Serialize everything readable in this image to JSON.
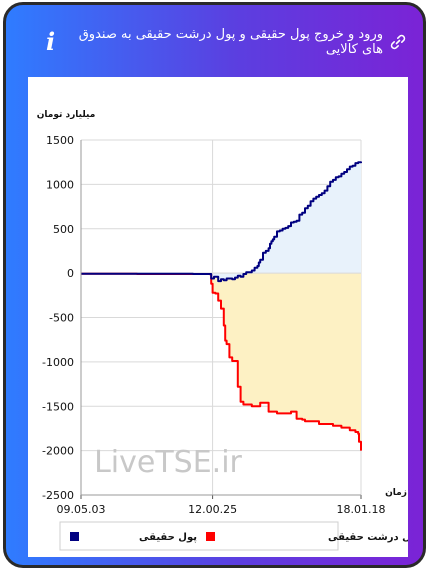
{
  "header": {
    "title": "ورود و خروج پول حقیقی و پول درشت حقیقی به صندوق های کالایی",
    "info_icon": "i"
  },
  "watermark": "LiveTSE.ir",
  "chart_data": {
    "type": "area",
    "ylabel": "میلیارد تومان",
    "xlabel": "زمان",
    "ylim": [
      -2500,
      1500
    ],
    "yticks": [
      1500,
      1000,
      500,
      0,
      -500,
      -1000,
      -1500,
      -2000,
      -2500
    ],
    "x_range": [
      0,
      100
    ],
    "xticks": [
      {
        "label": "09.05.03",
        "x": 0
      },
      {
        "label": "12.00.25",
        "x": 47
      },
      {
        "label": "18.01.18",
        "x": 100
      }
    ],
    "grid": true,
    "legend_position": "bottom",
    "colors": {
      "real_money": "#000080",
      "real_money_fill": "#e8f2fb",
      "big_real_money": "#ff0000",
      "big_real_money_fill": "#fdf1c4"
    },
    "series": [
      {
        "name": "پول حقیقی",
        "points": [
          [
            0,
            -8
          ],
          [
            20,
            -8
          ],
          [
            40,
            -10
          ],
          [
            46,
            -10
          ],
          [
            46.5,
            -60
          ],
          [
            47.5,
            -40
          ],
          [
            49,
            -90
          ],
          [
            50,
            -70
          ],
          [
            51,
            -80
          ],
          [
            52,
            -60
          ],
          [
            54,
            -70
          ],
          [
            55,
            -50
          ],
          [
            56,
            -30
          ],
          [
            57,
            -40
          ],
          [
            58,
            -10
          ],
          [
            59,
            10
          ],
          [
            61,
            30
          ],
          [
            62,
            60
          ],
          [
            63,
            80
          ],
          [
            63.5,
            120
          ],
          [
            64,
            150
          ],
          [
            65,
            230
          ],
          [
            66,
            250
          ],
          [
            67,
            280
          ],
          [
            67.5,
            330
          ],
          [
            68,
            360
          ],
          [
            68.5,
            380
          ],
          [
            69,
            410
          ],
          [
            70,
            470
          ],
          [
            71,
            480
          ],
          [
            72,
            500
          ],
          [
            73,
            510
          ],
          [
            74,
            530
          ],
          [
            75,
            570
          ],
          [
            76,
            580
          ],
          [
            77,
            590
          ],
          [
            78,
            660
          ],
          [
            79,
            680
          ],
          [
            80,
            730
          ],
          [
            81,
            760
          ],
          [
            82,
            810
          ],
          [
            83,
            840
          ],
          [
            84,
            860
          ],
          [
            85,
            880
          ],
          [
            86,
            900
          ],
          [
            87,
            930
          ],
          [
            88,
            980
          ],
          [
            89,
            1030
          ],
          [
            90,
            1050
          ],
          [
            91,
            1080
          ],
          [
            92,
            1090
          ],
          [
            93,
            1120
          ],
          [
            94,
            1140
          ],
          [
            95,
            1170
          ],
          [
            96,
            1200
          ],
          [
            97,
            1210
          ],
          [
            98,
            1240
          ],
          [
            99,
            1250
          ],
          [
            100,
            1240
          ]
        ]
      },
      {
        "name": "پول درشت حقیقی",
        "points": [
          [
            0,
            -8
          ],
          [
            20,
            -10
          ],
          [
            46,
            -12
          ],
          [
            46.5,
            -120
          ],
          [
            47,
            -220
          ],
          [
            48,
            -230
          ],
          [
            49,
            -310
          ],
          [
            50,
            -400
          ],
          [
            51,
            -590
          ],
          [
            51.5,
            -760
          ],
          [
            52,
            -800
          ],
          [
            53,
            -950
          ],
          [
            54,
            -990
          ],
          [
            55,
            -990
          ],
          [
            56,
            -1280
          ],
          [
            57,
            -1450
          ],
          [
            58,
            -1480
          ],
          [
            59,
            -1480
          ],
          [
            61,
            -1500
          ],
          [
            62,
            -1500
          ],
          [
            64,
            -1460
          ],
          [
            65,
            -1460
          ],
          [
            67,
            -1560
          ],
          [
            69,
            -1560
          ],
          [
            70,
            -1580
          ],
          [
            75,
            -1560
          ],
          [
            77,
            -1640
          ],
          [
            79,
            -1650
          ],
          [
            80,
            -1670
          ],
          [
            85,
            -1700
          ],
          [
            88,
            -1700
          ],
          [
            90,
            -1720
          ],
          [
            93,
            -1740
          ],
          [
            96,
            -1770
          ],
          [
            98,
            -1790
          ],
          [
            99,
            -1810
          ],
          [
            99.3,
            -1900
          ],
          [
            100,
            -2000
          ]
        ]
      }
    ]
  }
}
